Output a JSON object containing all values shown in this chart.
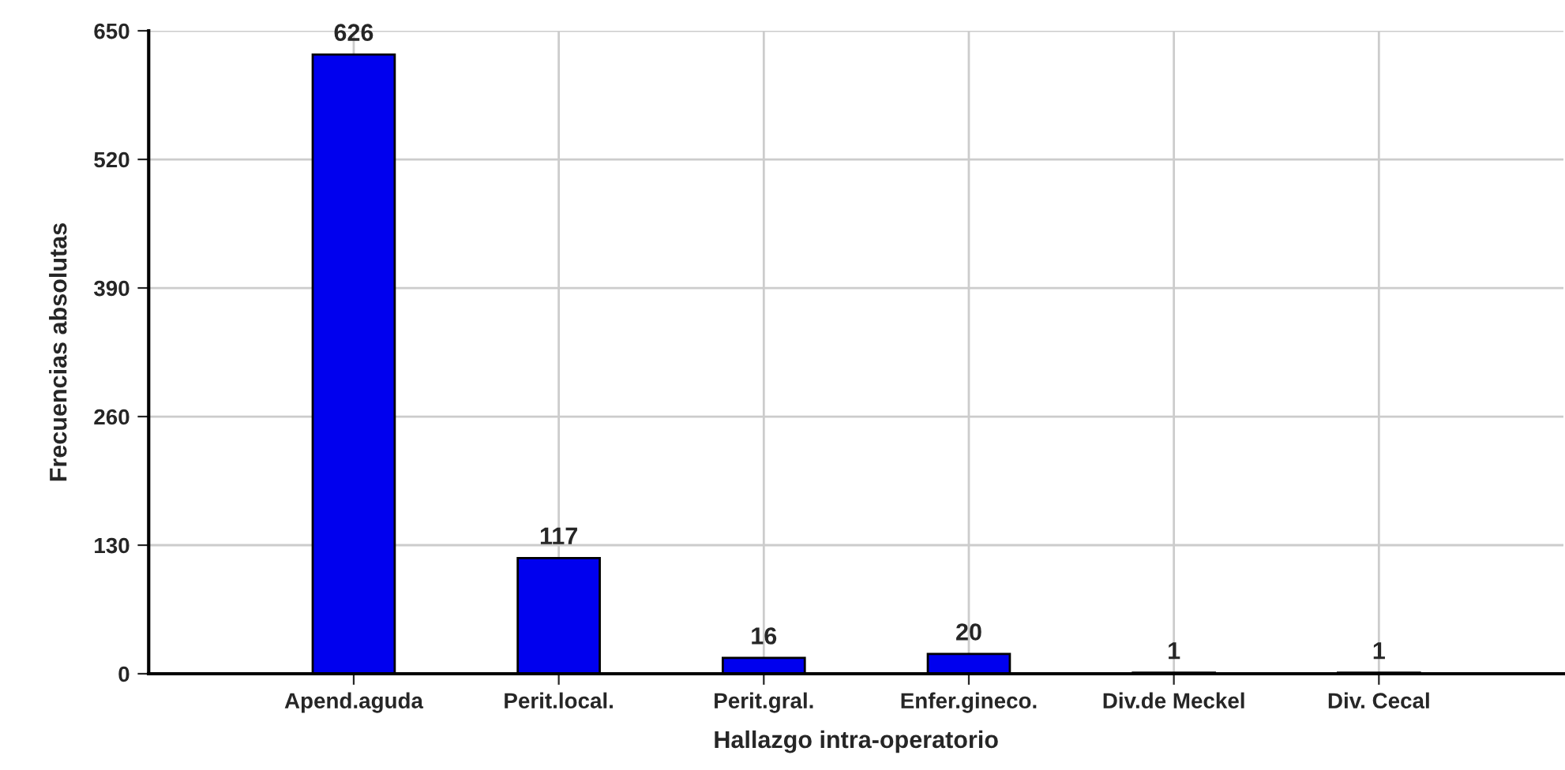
{
  "chart_data": {
    "type": "bar",
    "xlabel": "Hallazgo intra-operatorio",
    "ylabel": "Frecuencias absolutas",
    "categories": [
      "Apend.aguda",
      "Perit.local.",
      "Perit.gral.",
      "Enfer.gineco.",
      "Div.de Meckel",
      "Div. Cecal"
    ],
    "values": [
      626,
      117,
      16,
      20,
      1,
      1
    ],
    "color": "#0000ee",
    "ylim": [
      0,
      650
    ],
    "yticks": [
      0,
      130,
      260,
      390,
      520,
      650
    ],
    "grid": true,
    "data_labels": true
  }
}
